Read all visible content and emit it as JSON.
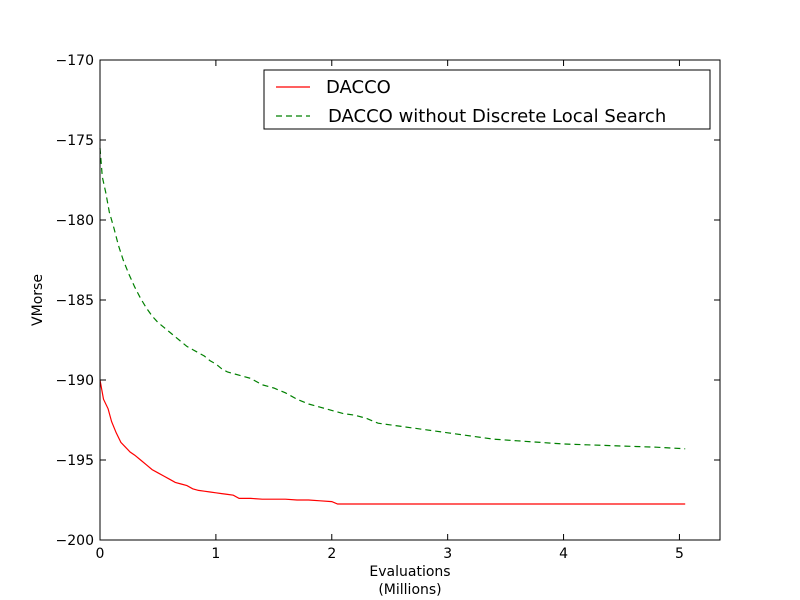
{
  "chart_data": {
    "type": "line",
    "title": "",
    "xlabel": "Evaluations",
    "xlabel_line2": "(Millions)",
    "ylabel": "VMorse",
    "xlim": [
      0,
      5.35
    ],
    "ylim": [
      -200,
      -170
    ],
    "xticks": [
      0,
      1,
      2,
      3,
      4,
      5
    ],
    "yticks": [
      -170,
      -175,
      -180,
      -185,
      -190,
      -195,
      -200
    ],
    "xtick_labels": [
      "0",
      "1",
      "2",
      "3",
      "4",
      "5"
    ],
    "ytick_labels": [
      "−170",
      "−175",
      "−180",
      "−185",
      "−190",
      "−195",
      "−200"
    ],
    "grid": false,
    "legend": "top-right",
    "series": [
      {
        "name": "DACCO",
        "color": "#ff0000",
        "style": "solid",
        "x": [
          0,
          0.03,
          0.07,
          0.1,
          0.14,
          0.18,
          0.22,
          0.26,
          0.3,
          0.35,
          0.4,
          0.45,
          0.5,
          0.55,
          0.6,
          0.65,
          0.7,
          0.75,
          0.8,
          0.85,
          0.9,
          0.95,
          1.0,
          1.05,
          1.1,
          1.15,
          1.2,
          1.3,
          1.4,
          1.5,
          1.6,
          1.7,
          1.8,
          1.9,
          2.0,
          2.05,
          2.2,
          2.5,
          3.0,
          3.5,
          4.0,
          4.5,
          5.05
        ],
        "y": [
          -190.0,
          -191.2,
          -191.8,
          -192.6,
          -193.3,
          -193.9,
          -194.2,
          -194.5,
          -194.7,
          -195.0,
          -195.3,
          -195.6,
          -195.8,
          -196.0,
          -196.2,
          -196.4,
          -196.5,
          -196.6,
          -196.8,
          -196.9,
          -196.95,
          -197.0,
          -197.05,
          -197.1,
          -197.15,
          -197.2,
          -197.4,
          -197.4,
          -197.45,
          -197.45,
          -197.45,
          -197.5,
          -197.5,
          -197.55,
          -197.6,
          -197.75,
          -197.75,
          -197.75,
          -197.75,
          -197.75,
          -197.75,
          -197.75,
          -197.75
        ]
      },
      {
        "name": "DACCO without Discrete Local Search",
        "color": "#008000",
        "style": "dashed",
        "x": [
          0,
          0.02,
          0.05,
          0.08,
          0.12,
          0.16,
          0.2,
          0.25,
          0.3,
          0.35,
          0.4,
          0.45,
          0.5,
          0.55,
          0.6,
          0.65,
          0.7,
          0.75,
          0.8,
          0.85,
          0.9,
          0.95,
          1.0,
          1.05,
          1.1,
          1.2,
          1.3,
          1.4,
          1.5,
          1.6,
          1.7,
          1.8,
          1.9,
          2.0,
          2.1,
          2.2,
          2.3,
          2.4,
          2.5,
          2.6,
          2.7,
          2.8,
          2.9,
          3.0,
          3.2,
          3.4,
          3.6,
          3.8,
          4.0,
          4.2,
          4.4,
          4.6,
          4.8,
          5.05
        ],
        "y": [
          -175.5,
          -177.3,
          -178.3,
          -179.5,
          -180.5,
          -181.6,
          -182.5,
          -183.4,
          -184.2,
          -184.9,
          -185.5,
          -186.0,
          -186.4,
          -186.7,
          -187.0,
          -187.3,
          -187.6,
          -187.9,
          -188.1,
          -188.3,
          -188.5,
          -188.8,
          -189.0,
          -189.3,
          -189.5,
          -189.7,
          -189.9,
          -190.3,
          -190.5,
          -190.8,
          -191.2,
          -191.5,
          -191.7,
          -191.9,
          -192.1,
          -192.2,
          -192.4,
          -192.7,
          -192.8,
          -192.9,
          -193.0,
          -193.1,
          -193.2,
          -193.3,
          -193.5,
          -193.7,
          -193.8,
          -193.9,
          -194.0,
          -194.05,
          -194.1,
          -194.15,
          -194.2,
          -194.3
        ]
      }
    ]
  }
}
